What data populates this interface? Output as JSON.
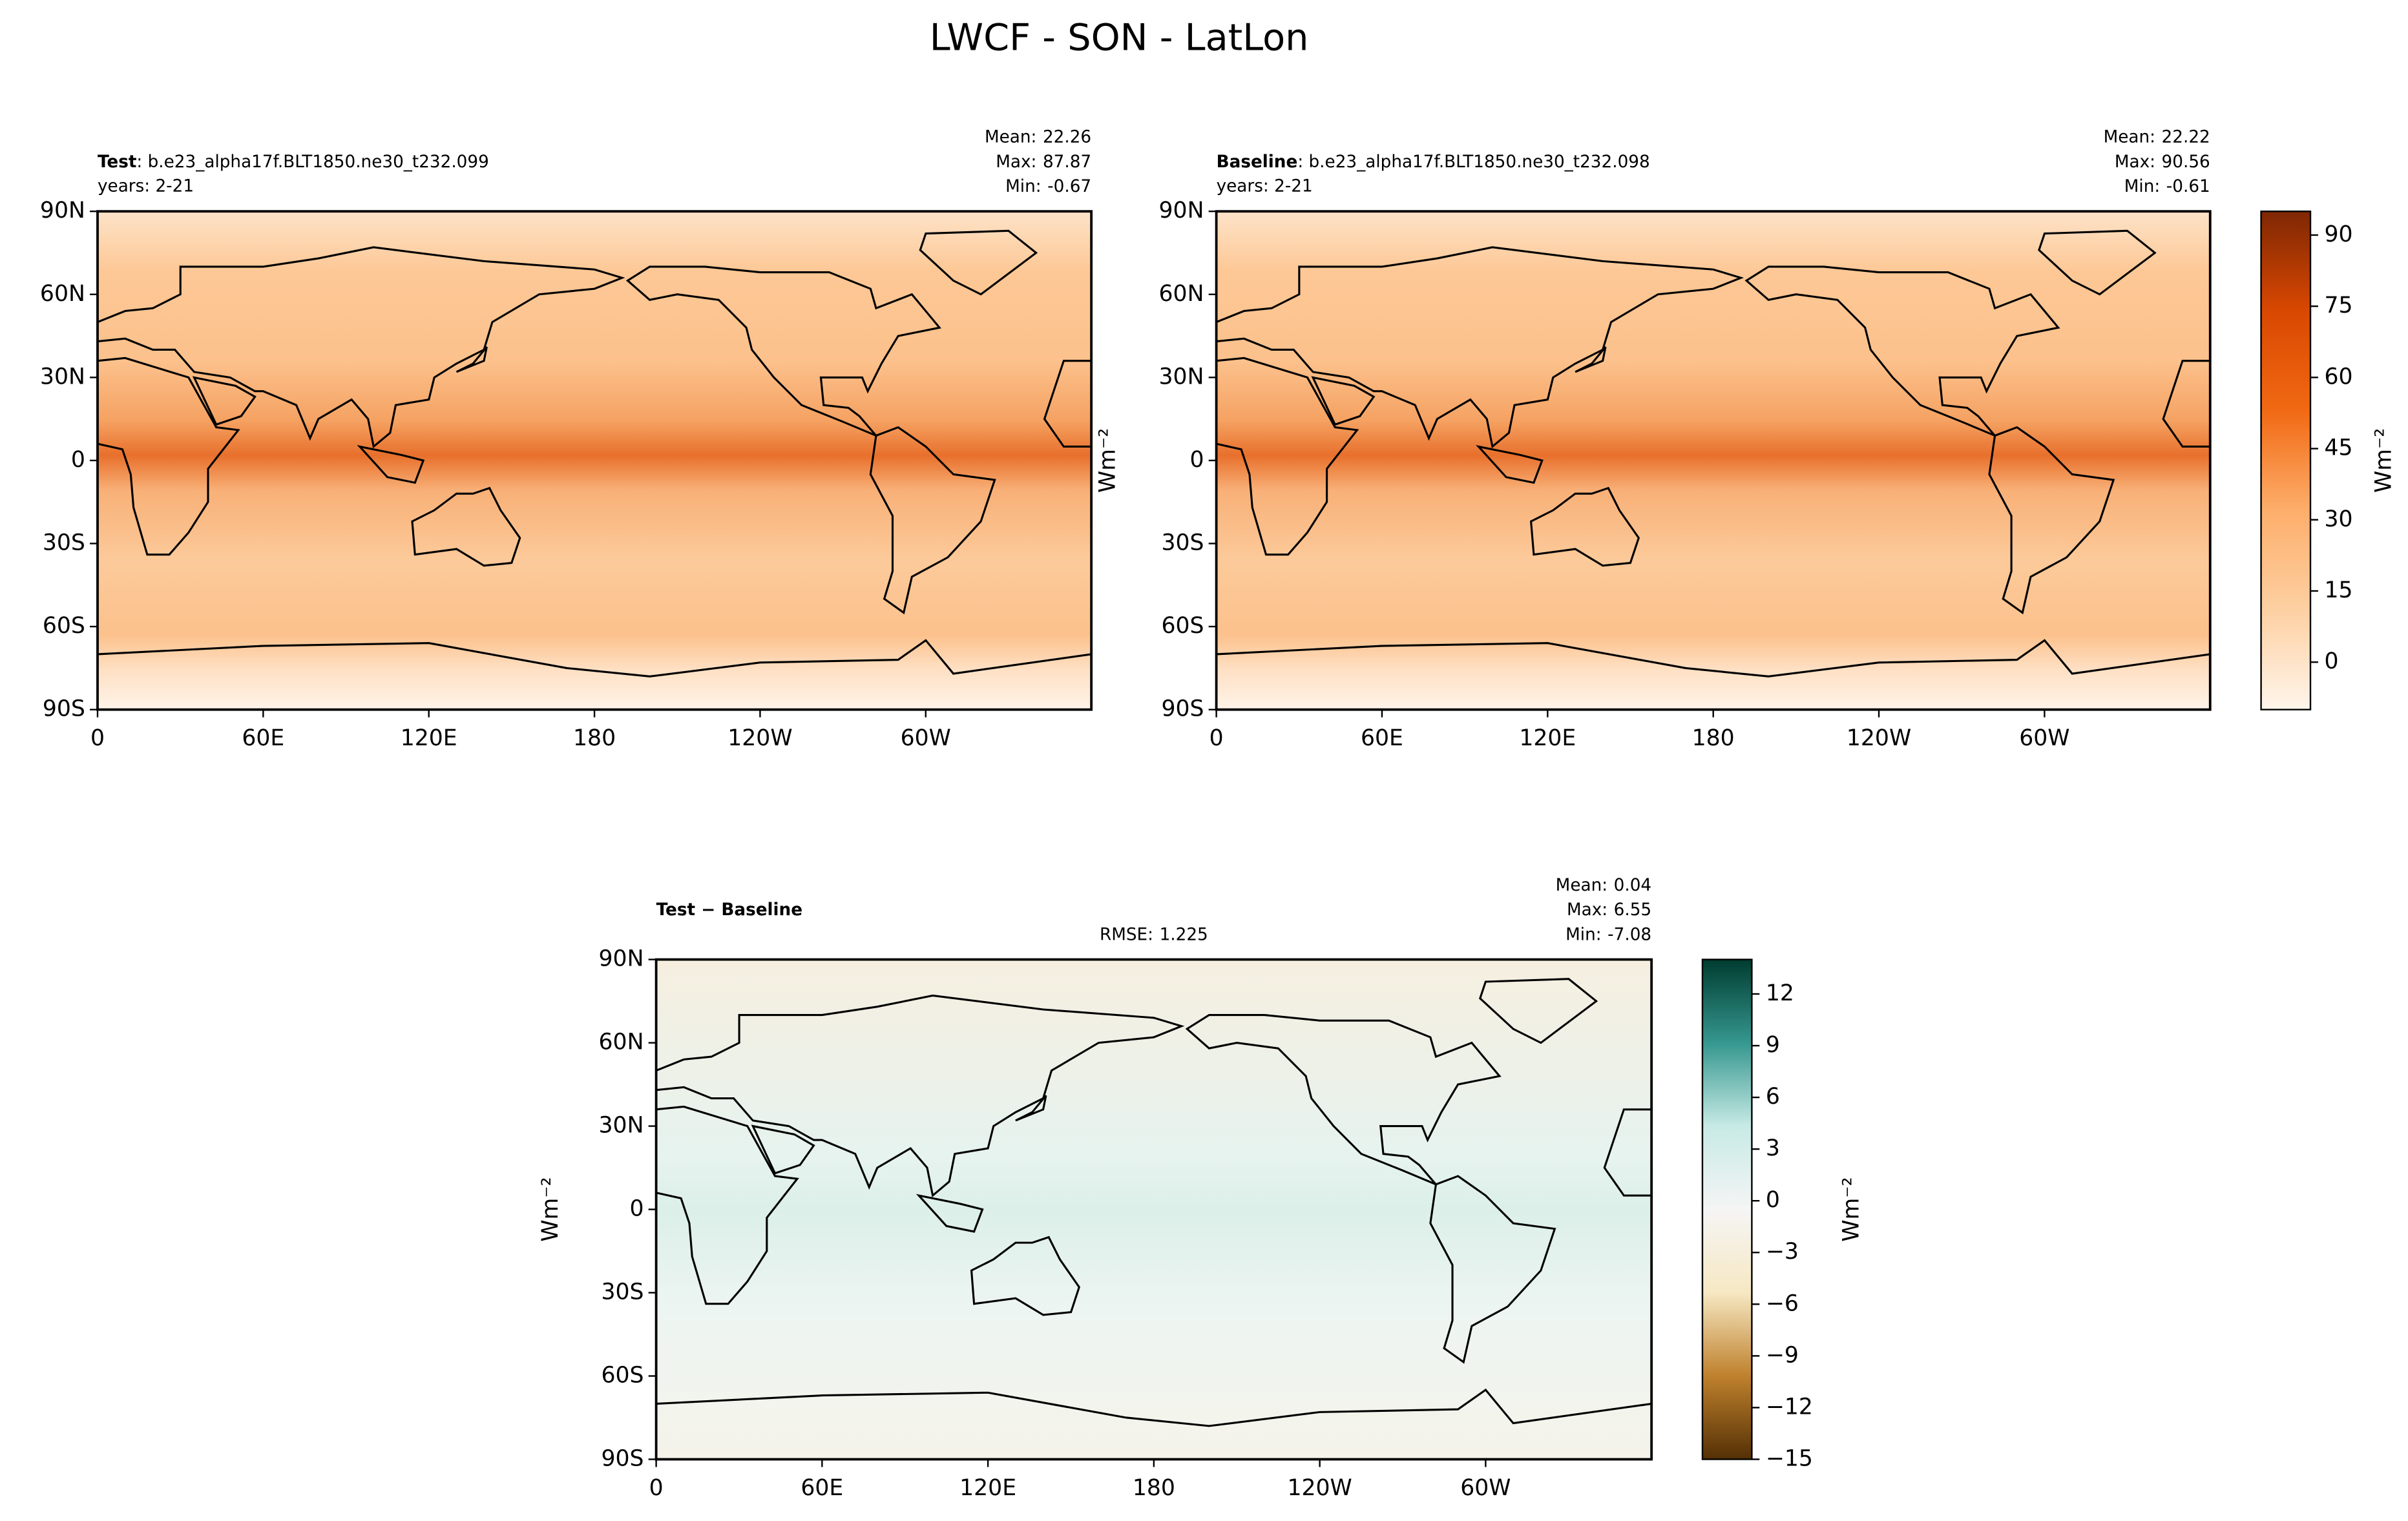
{
  "title": "LWCF - SON - LatLon",
  "chart_data": [
    {
      "type": "map",
      "left_title_bold": "Test",
      "left_title": ": b.e23_alpha17f.BLT1850.ne30_t232.099",
      "years": "years: 2-21",
      "stats": [
        {
          "label": "Mean:",
          "value": 22.26
        },
        {
          "label": "Max:",
          "value": 87.87
        },
        {
          "label": "Min:",
          "value": -0.67
        }
      ],
      "xlim": [
        0,
        360
      ],
      "ylim": [
        -90,
        90
      ],
      "xticks": [
        0,
        {
          "value": 60,
          "label": "60E"
        },
        {
          "value": 120,
          "label": "120E"
        },
        180,
        {
          "value": 240,
          "label": "120W"
        },
        {
          "value": 300,
          "label": "60W"
        }
      ],
      "yticks": [
        {
          "value": 90,
          "label": "90N"
        },
        {
          "value": 60,
          "label": "60N"
        },
        {
          "value": 30,
          "label": "30N"
        },
        0,
        {
          "value": -30,
          "label": "30S"
        },
        {
          "value": -60,
          "label": "60S"
        },
        {
          "value": -90,
          "label": "90S"
        }
      ],
      "field": "abs"
    },
    {
      "type": "map",
      "left_title_bold": "Baseline",
      "left_title": ": b.e23_alpha17f.BLT1850.ne30_t232.098",
      "years": "years: 2-21",
      "stats": [
        {
          "label": "Mean:",
          "value": 22.22
        },
        {
          "label": "Max:",
          "value": 90.56
        },
        {
          "label": "Min:",
          "value": -0.61
        }
      ],
      "ylabel": "Wm⁻²",
      "xlim": [
        0,
        360
      ],
      "ylim": [
        -90,
        90
      ],
      "xticks": [
        0,
        {
          "value": 60,
          "label": "60E"
        },
        {
          "value": 120,
          "label": "120E"
        },
        180,
        {
          "value": 240,
          "label": "120W"
        },
        {
          "value": 300,
          "label": "60W"
        }
      ],
      "yticks": [
        {
          "value": 90,
          "label": "90N"
        },
        {
          "value": 60,
          "label": "60N"
        },
        {
          "value": 30,
          "label": "30N"
        },
        0,
        {
          "value": -30,
          "label": "30S"
        },
        {
          "value": -60,
          "label": "60S"
        },
        {
          "value": -90,
          "label": "90S"
        }
      ],
      "field": "abs",
      "colorbar": {
        "label": "Wm⁻²",
        "lim": [
          -10,
          95
        ],
        "ticks": [
          90,
          75,
          60,
          45,
          30,
          15,
          0
        ],
        "colors": [
          "#fff5eb",
          "#fdd0a2",
          "#fdae6b",
          "#f16913",
          "#d94801",
          "#7f2704"
        ]
      }
    },
    {
      "type": "map",
      "left_title_bold": "Test − Baseline",
      "rmse": {
        "label": "RMSE:",
        "value": 1.225
      },
      "stats": [
        {
          "label": "Mean:",
          "value": 0.04
        },
        {
          "label": "Max:",
          "value": 6.55
        },
        {
          "label": "Min:",
          "value": -7.08
        }
      ],
      "ylabel": "Wm⁻²",
      "xlim": [
        0,
        360
      ],
      "ylim": [
        -90,
        90
      ],
      "xticks": [
        0,
        {
          "value": 60,
          "label": "60E"
        },
        {
          "value": 120,
          "label": "120E"
        },
        180,
        {
          "value": 240,
          "label": "120W"
        },
        {
          "value": 300,
          "label": "60W"
        }
      ],
      "yticks": [
        {
          "value": 90,
          "label": "90N"
        },
        {
          "value": 60,
          "label": "60N"
        },
        {
          "value": 30,
          "label": "30N"
        },
        0,
        {
          "value": -30,
          "label": "30S"
        },
        {
          "value": -60,
          "label": "60S"
        },
        {
          "value": -90,
          "label": "90S"
        }
      ],
      "field": "diff",
      "colorbar": {
        "label": "Wm⁻²",
        "lim": [
          -15,
          14
        ],
        "ticks": [
          12,
          9,
          6,
          3,
          0,
          {
            "value": -3,
            "label": "−3"
          },
          {
            "value": -6,
            "label": "−6"
          },
          {
            "value": -9,
            "label": "−9"
          },
          {
            "value": -12,
            "label": "−12"
          },
          {
            "value": -15,
            "label": "−15"
          }
        ],
        "colors": [
          "#543005",
          "#bf812d",
          "#f6e8c3",
          "#f5f5f5",
          "#c7eae5",
          "#35978f",
          "#003c30"
        ]
      }
    }
  ]
}
